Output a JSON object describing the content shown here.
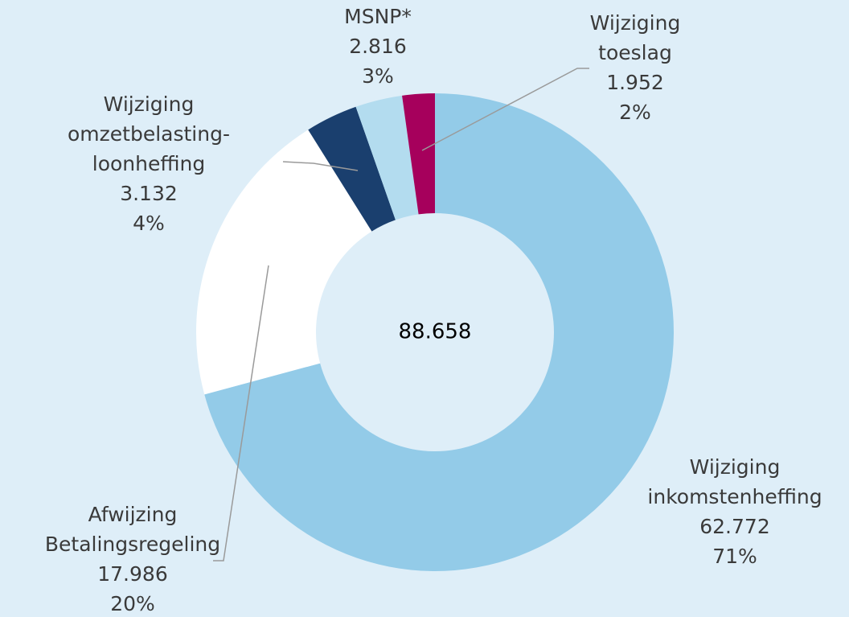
{
  "chart_data": {
    "type": "donut",
    "categories": [
      [
        "Wijziging",
        "inkomstenheffing"
      ],
      [
        "Afwijzing",
        "Betalingsregeling"
      ],
      [
        "Wijziging",
        "omzetbelasting-",
        "loonheffing"
      ],
      [
        "MSNP*"
      ],
      [
        "Wijziging",
        "toeslag"
      ]
    ],
    "values": [
      62772,
      17986,
      3132,
      2816,
      1952
    ],
    "value_labels": [
      "62.772",
      "17.986",
      "3.132",
      "2.816",
      "1.952"
    ],
    "percent_labels": [
      "71%",
      "20%",
      "4%",
      "3%",
      "2%"
    ],
    "colors": [
      "#93cbe8",
      "#ffffff",
      "#1a3f6e",
      "#b3dcef",
      "#a6005c"
    ],
    "total": {
      "value": 88658,
      "label": "88.658"
    }
  }
}
